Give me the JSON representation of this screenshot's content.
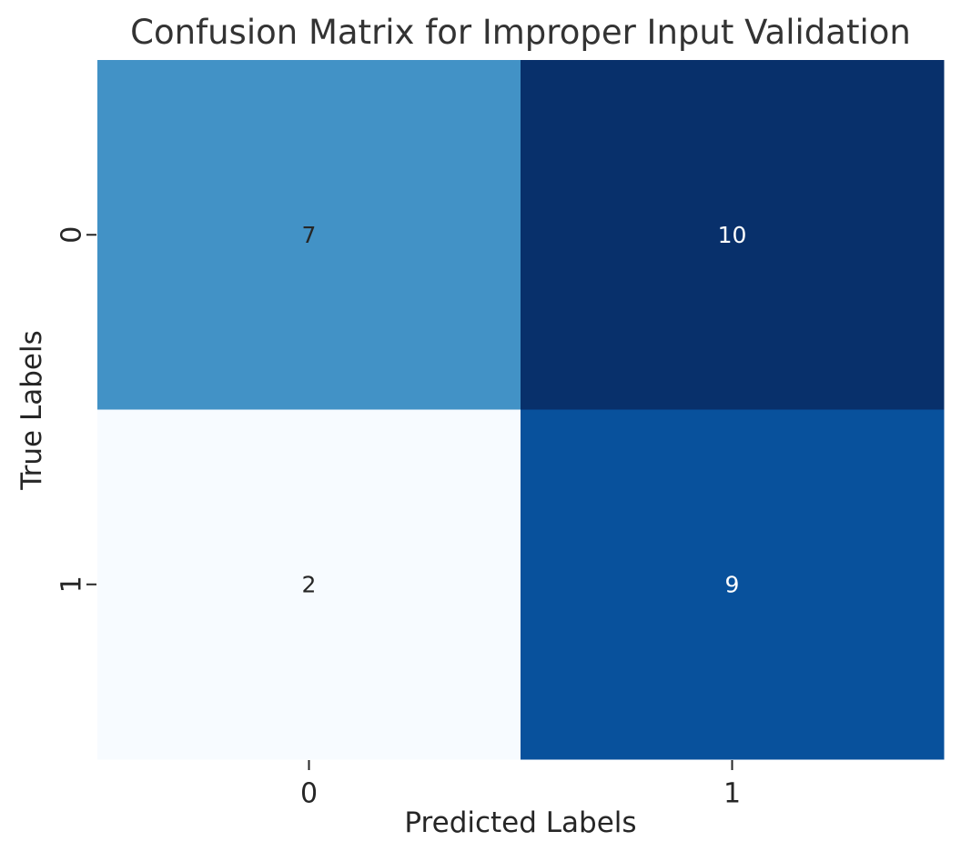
{
  "chart_data": {
    "type": "heatmap",
    "title": "Confusion Matrix for Improper Input Validation",
    "xlabel": "Predicted Labels",
    "ylabel": "True Labels",
    "x_categories": [
      "0",
      "1"
    ],
    "y_categories": [
      "0",
      "1"
    ],
    "values": [
      [
        7,
        10
      ],
      [
        2,
        9
      ]
    ],
    "colormap": "Blues",
    "colorbar": false,
    "value_range": [
      2,
      10
    ],
    "colors": {
      "low": "#f7fbff",
      "high": "#08306b",
      "text_dark": "#262626",
      "text_light": "#ffffff",
      "label_text": "#262626",
      "title_text": "#333333"
    }
  }
}
